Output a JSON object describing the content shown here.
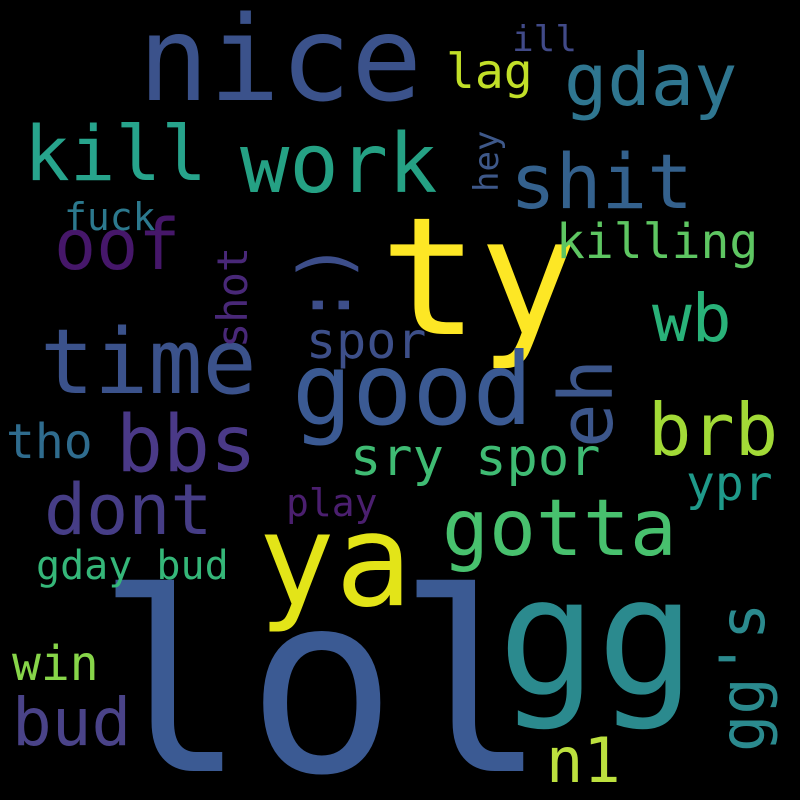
{
  "background": "#000000",
  "words": {
    "lol": "lol",
    "gg": "gg",
    "ty": "ty",
    "ya": "ya",
    "nice": "nice",
    "good": "good",
    "time": "time",
    "work": "work",
    "bbs": "bbs",
    "gotta": "gotta",
    "kill": "kill",
    "shit": "shit",
    "gday": "gday",
    "brb": "brb",
    "dont": "dont",
    "oof": "oof",
    "bud": "bud",
    "wb": "wb",
    "n1": "n1",
    "sry_spor": "sry spor",
    "spor": "spor",
    "killing": "killing",
    "win": "win",
    "lag": "lag",
    "tho": "tho",
    "ypr": "ypr",
    "gday_bud": "gday bud",
    "play": "play",
    "fuck": "fuck",
    "ill": "ill",
    "smile": ":)",
    "eh": "eh",
    "ggs": "gg's",
    "shot": "shot",
    "hey": "hey"
  }
}
